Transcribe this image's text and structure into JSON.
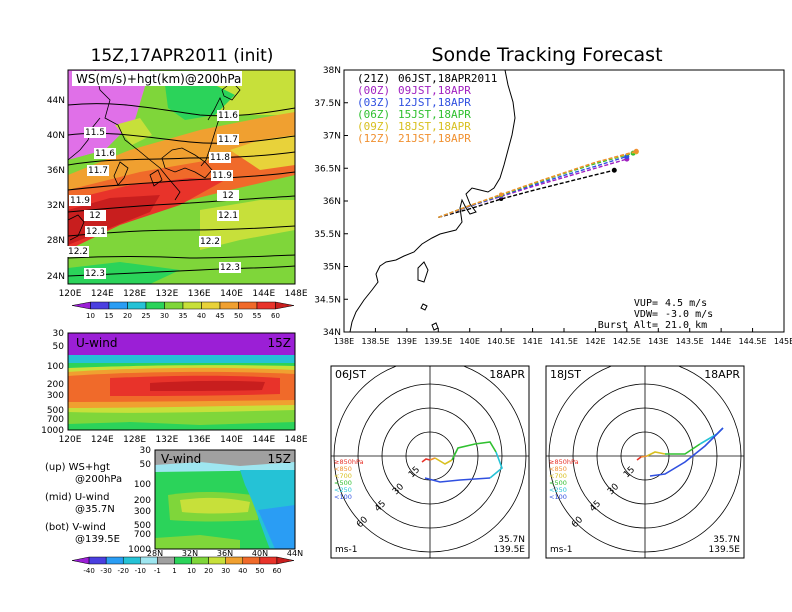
{
  "header": {
    "left_title": "15Z,17APR2011 (init)",
    "right_title": "Sonde Tracking Forecast"
  },
  "ws_map": {
    "label": "WS(m/s)+hgt(km)@200hPa",
    "lat_labels": [
      "44N",
      "40N",
      "36N",
      "32N",
      "28N",
      "24N"
    ],
    "lon_labels": [
      "120E",
      "124E",
      "128E",
      "132E",
      "136E",
      "140E",
      "144E",
      "148E"
    ],
    "contour_labels": [
      "11.5",
      "11.6",
      "11.6",
      "11.7",
      "11.7",
      "11.8",
      "11.9",
      "11.9",
      "12",
      "12",
      "12.1",
      "12.1",
      "12.2",
      "12.2",
      "12.3",
      "12.3"
    ]
  },
  "ws_colorbar": {
    "ticks": [
      "10",
      "15",
      "20",
      "25",
      "30",
      "35",
      "40",
      "45",
      "50",
      "55",
      "60"
    ],
    "colors": [
      "#9b1fd6",
      "#4a3fe0",
      "#2a9df4",
      "#25c2d6",
      "#2bd35a",
      "#7fd63a",
      "#c7e03a",
      "#e8d23a",
      "#f0a030",
      "#f06a2a",
      "#e8332a",
      "#c81e1e"
    ]
  },
  "u_wind": {
    "label": "U-wind",
    "time": "15Z",
    "y_labels": [
      "30",
      "50",
      "100",
      "200",
      "300",
      "500",
      "700",
      "1000"
    ],
    "x_labels": [
      "120E",
      "124E",
      "128E",
      "132E",
      "136E",
      "140E",
      "144E",
      "148E"
    ]
  },
  "v_wind": {
    "label": "V-wind",
    "time": "15Z",
    "y_labels": [
      "30",
      "50",
      "100",
      "200",
      "300",
      "500",
      "700",
      "1000"
    ],
    "x_labels": [
      "28N",
      "32N",
      "36N",
      "40N",
      "44N"
    ]
  },
  "legend_notes": [
    {
      "line1": "(up) WS+hgt",
      "line2": "@200hPa"
    },
    {
      "line1": "(mid) U-wind",
      "line2": "@35.7N"
    },
    {
      "line1": "(bot) V-wind",
      "line2": "@139.5E"
    }
  ],
  "wind_colorbar": {
    "ticks": [
      "-40",
      "-30",
      "-20",
      "-10",
      "-1",
      "1",
      "10",
      "20",
      "30",
      "40",
      "50",
      "60"
    ],
    "colors": [
      "#9b1fd6",
      "#4a3fe0",
      "#2a9df4",
      "#25c2d6",
      "#9ee6f0",
      "#a0a0a0",
      "#2bd35a",
      "#7fd63a",
      "#c7e03a",
      "#f0a030",
      "#f06a2a",
      "#e8332a",
      "#c81e1e"
    ]
  },
  "track_map": {
    "lat_labels": [
      "38N",
      "37.5N",
      "37N",
      "36.5N",
      "36N",
      "35.5N",
      "35N",
      "34.5N",
      "34N"
    ],
    "lon_labels": [
      "138E",
      "138.5E",
      "139E",
      "139.5E",
      "140E",
      "140.5E",
      "141E",
      "141.5E",
      "142E",
      "142.5E",
      "143E",
      "143.5E",
      "144E",
      "144.5E",
      "145E"
    ],
    "forecasts": [
      {
        "run": "(21Z)",
        "valid": "06JST,18APR2011",
        "color": "#000000"
      },
      {
        "run": "(00Z)",
        "valid": "09JST,18APR",
        "color": "#a020c0"
      },
      {
        "run": "(03Z)",
        "valid": "12JST,18APR",
        "color": "#3050e0"
      },
      {
        "run": "(06Z)",
        "valid": "15JST,18APR",
        "color": "#30c030"
      },
      {
        "run": "(09Z)",
        "valid": "18JST,18APR",
        "color": "#d8c020"
      },
      {
        "run": "(12Z)",
        "valid": "21JST,18APR",
        "color": "#f09030"
      }
    ],
    "params": [
      {
        "label": "VUP=",
        "value": "4.5 m/s"
      },
      {
        "label": "VDW=",
        "value": "-3.0 m/s"
      },
      {
        "label": "Burst Alt=",
        "value": "21.0 km"
      }
    ]
  },
  "chart_data": [
    {
      "type": "line",
      "title": "Sonde Tracking Forecast",
      "xlabel": "",
      "ylabel": "",
      "xlim": [
        138,
        145
      ],
      "ylim": [
        34,
        38
      ],
      "series": [
        {
          "name": "(21Z) 06JST,18APR2011",
          "x": [
            139.5,
            140.0,
            140.5,
            141.0,
            141.5,
            142.0,
            142.3
          ],
          "y": [
            35.75,
            35.88,
            36.03,
            36.16,
            36.28,
            36.4,
            36.47
          ]
        },
        {
          "name": "(00Z) 09JST,18APR",
          "x": [
            139.5,
            140.0,
            140.5,
            141.0,
            141.5,
            142.0,
            142.5
          ],
          "y": [
            35.75,
            35.92,
            36.07,
            36.22,
            36.36,
            36.5,
            36.64
          ]
        },
        {
          "name": "(03Z) 12JST,18APR",
          "x": [
            139.5,
            140.0,
            140.5,
            141.0,
            141.5,
            142.0,
            142.5
          ],
          "y": [
            35.75,
            35.92,
            36.08,
            36.24,
            36.39,
            36.53,
            36.68
          ]
        },
        {
          "name": "(06Z) 15JST,18APR",
          "x": [
            139.5,
            140.0,
            140.5,
            141.0,
            141.5,
            142.0,
            142.6
          ],
          "y": [
            35.75,
            35.93,
            36.09,
            36.26,
            36.42,
            36.57,
            36.73
          ]
        },
        {
          "name": "(09Z) 18JST,18APR",
          "x": [
            139.5,
            140.0,
            140.5,
            141.0,
            141.5,
            142.0,
            142.65
          ],
          "y": [
            35.75,
            35.93,
            36.1,
            36.27,
            36.43,
            36.59,
            36.75
          ]
        },
        {
          "name": "(12Z) 21JST,18APR",
          "x": [
            139.5,
            140.0,
            140.5,
            141.0,
            141.5,
            142.0,
            142.65
          ],
          "y": [
            35.75,
            35.93,
            36.1,
            36.27,
            36.43,
            36.59,
            36.76
          ]
        }
      ]
    }
  ],
  "hodo_left": {
    "time": "06JST",
    "date": "18APR",
    "ring_labels": [
      "15",
      "30",
      "45",
      "60"
    ],
    "level_legend": [
      "≥850hPa",
      "<850",
      "<700",
      "<500",
      "<250",
      "<100"
    ],
    "level_colors": [
      "#e8332a",
      "#f09030",
      "#d8c020",
      "#30c030",
      "#25c2d6",
      "#3050e0"
    ],
    "unit": "ms-1",
    "lat": "35.7N",
    "lon": "139.5E"
  },
  "hodo_right": {
    "time": "18JST",
    "date": "18APR",
    "ring_labels": [
      "15",
      "30",
      "45",
      "60"
    ],
    "level_legend": [
      "≥850hPa",
      "<850",
      "<700",
      "<500",
      "<250",
      "<100"
    ],
    "level_colors": [
      "#e8332a",
      "#f09030",
      "#d8c020",
      "#30c030",
      "#25c2d6",
      "#3050e0"
    ],
    "unit": "ms-1",
    "lat": "35.7N",
    "lon": "139.5E"
  }
}
